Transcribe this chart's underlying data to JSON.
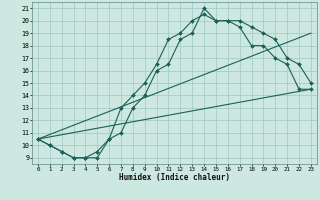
{
  "xlabel": "Humidex (Indice chaleur)",
  "bg_color": "#cce8e0",
  "grid_color": "#a8ccc8",
  "line_color": "#1a6058",
  "xlim": [
    -0.5,
    23.5
  ],
  "ylim": [
    8.5,
    21.5
  ],
  "xticks": [
    0,
    1,
    2,
    3,
    4,
    5,
    6,
    7,
    8,
    9,
    10,
    11,
    12,
    13,
    14,
    15,
    16,
    17,
    18,
    19,
    20,
    21,
    22,
    23
  ],
  "yticks": [
    9,
    10,
    11,
    12,
    13,
    14,
    15,
    16,
    17,
    18,
    19,
    20,
    21
  ],
  "line1_x": [
    0,
    1,
    2,
    3,
    4,
    5,
    6,
    7,
    8,
    9,
    10,
    11,
    12,
    13,
    14,
    15,
    16,
    17,
    18,
    19,
    20,
    21,
    22,
    23
  ],
  "line1_y": [
    10.5,
    10,
    9.5,
    9,
    9,
    9,
    10.5,
    11,
    13,
    14,
    16,
    16.5,
    18.5,
    19,
    21,
    20,
    20,
    20,
    19.5,
    19,
    18.5,
    17,
    16.5,
    15
  ],
  "line2_x": [
    0,
    1,
    2,
    3,
    4,
    5,
    6,
    7,
    8,
    9,
    10,
    11,
    12,
    13,
    14,
    15,
    16,
    17,
    18,
    19,
    20,
    21,
    22,
    23
  ],
  "line2_y": [
    10.5,
    10,
    9.5,
    9,
    9,
    9.5,
    10.5,
    13,
    14,
    15,
    16.5,
    18.5,
    19,
    20,
    20.5,
    20,
    20,
    19.5,
    18,
    18,
    17,
    16.5,
    14.5,
    14.5
  ],
  "line3_x": [
    0,
    23
  ],
  "line3_y": [
    10.5,
    14.5
  ],
  "line4_x": [
    0,
    23
  ],
  "line4_y": [
    10.5,
    19.0
  ]
}
